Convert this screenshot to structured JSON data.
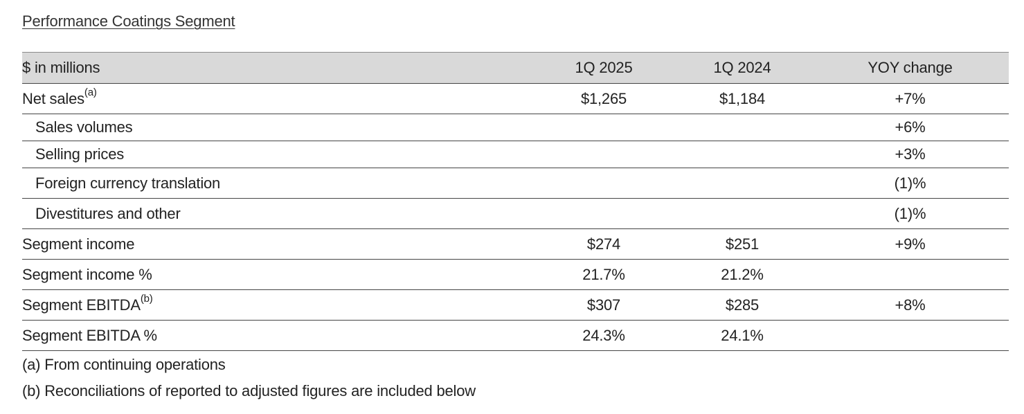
{
  "title": "Performance Coatings Segment",
  "header": {
    "label": "$ in millions",
    "col_a": "1Q 2025",
    "col_b": "1Q 2024",
    "col_c": "YOY change"
  },
  "rows": [
    {
      "label": "Net sales",
      "sup": "(a)",
      "a": "$1,265",
      "b": "$1,184",
      "c": "+7%"
    },
    {
      "label": "Sales volumes",
      "sup": "",
      "a": "",
      "b": "",
      "c": "+6%"
    },
    {
      "label": "Selling prices",
      "sup": "",
      "a": "",
      "b": "",
      "c": "+3%"
    },
    {
      "label": "Foreign currency translation",
      "sup": "",
      "a": "",
      "b": "",
      "c": "(1)%"
    },
    {
      "label": "Divestitures and other",
      "sup": "",
      "a": "",
      "b": "",
      "c": "(1)%"
    },
    {
      "label": "Segment income",
      "sup": "",
      "a": "$274",
      "b": "$251",
      "c": "+9%"
    },
    {
      "label": "Segment income %",
      "sup": "",
      "a": "21.7%",
      "b": "21.2%",
      "c": ""
    },
    {
      "label": "Segment EBITDA",
      "sup": "(b)",
      "a": "$307",
      "b": "$285",
      "c": "+8%"
    },
    {
      "label": "Segment EBITDA %",
      "sup": "",
      "a": "24.3%",
      "b": "24.1%",
      "c": ""
    }
  ],
  "notes": [
    "(a) From continuing operations",
    "(b) Reconciliations of reported to adjusted figures are included below"
  ]
}
